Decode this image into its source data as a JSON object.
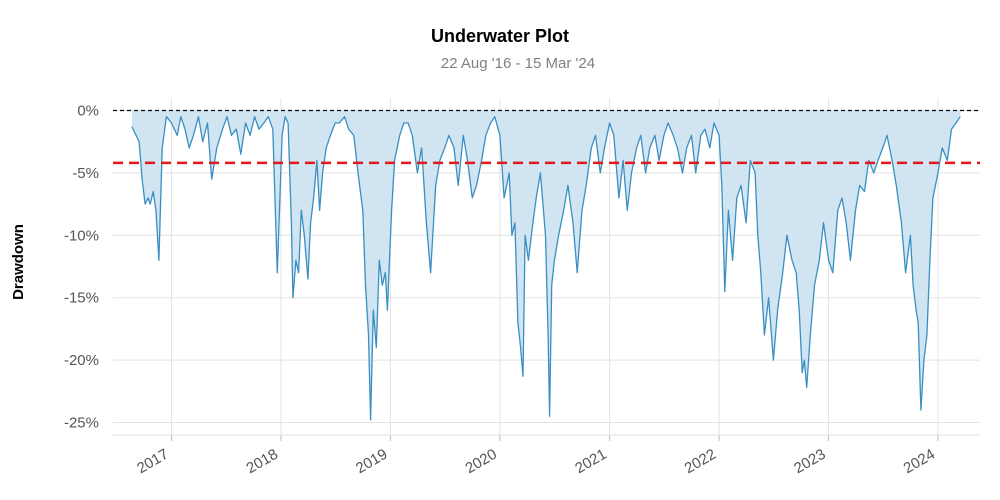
{
  "chart_data": {
    "type": "area",
    "title": "Underwater Plot",
    "subtitle": "22 Aug '16 - 15 Mar '24",
    "ylabel": "Drawdown",
    "xlabel": "",
    "xlim": [
      "2016-06-20",
      "2024-05-20"
    ],
    "ylim": [
      -26,
      1
    ],
    "y_ticks": [
      {
        "value": 0,
        "label": "0%"
      },
      {
        "value": -5,
        "label": "-5%"
      },
      {
        "value": -10,
        "label": "-10%"
      },
      {
        "value": -15,
        "label": "-15%"
      },
      {
        "value": -20,
        "label": "-20%"
      },
      {
        "value": -25,
        "label": "-25%"
      }
    ],
    "x_ticks": [
      {
        "value": "2017-01-01",
        "label": "2017"
      },
      {
        "value": "2018-01-01",
        "label": "2018"
      },
      {
        "value": "2019-01-01",
        "label": "2019"
      },
      {
        "value": "2020-01-01",
        "label": "2020"
      },
      {
        "value": "2021-01-01",
        "label": "2021"
      },
      {
        "value": "2022-01-01",
        "label": "2022"
      },
      {
        "value": "2023-01-01",
        "label": "2023"
      },
      {
        "value": "2024-01-01",
        "label": "2024"
      }
    ],
    "average_drawdown": -4.2,
    "grid": true,
    "colors": {
      "line": "#3a8fc2",
      "fill": "#cfe3f1",
      "average": "#e31a1c",
      "zero": "#000000"
    },
    "series": [
      {
        "x": [
          "2016-08-22",
          "2016-09-05",
          "2016-09-15",
          "2016-09-25",
          "2016-10-05",
          "2016-10-15",
          "2016-10-22",
          "2016-11-01",
          "2016-11-10",
          "2016-11-20",
          "2016-12-01",
          "2016-12-15",
          "2017-01-01",
          "2017-01-20",
          "2017-02-01",
          "2017-02-15",
          "2017-03-01",
          "2017-03-15",
          "2017-04-01",
          "2017-04-15",
          "2017-05-01",
          "2017-05-15",
          "2017-06-01",
          "2017-06-20",
          "2017-07-05",
          "2017-07-20",
          "2017-08-05",
          "2017-08-20",
          "2017-09-05",
          "2017-09-20",
          "2017-10-05",
          "2017-10-20",
          "2017-11-05",
          "2017-11-20",
          "2017-12-05",
          "2017-12-20",
          "2018-01-05",
          "2018-01-15",
          "2018-01-25",
          "2018-02-05",
          "2018-02-10",
          "2018-02-20",
          "2018-03-01",
          "2018-03-10",
          "2018-03-20",
          "2018-04-01",
          "2018-04-10",
          "2018-04-20",
          "2018-05-01",
          "2018-05-10",
          "2018-05-20",
          "2018-06-01",
          "2018-06-15",
          "2018-07-01",
          "2018-07-15",
          "2018-08-01",
          "2018-08-15",
          "2018-09-01",
          "2018-09-15",
          "2018-10-01",
          "2018-10-10",
          "2018-10-20",
          "2018-10-27",
          "2018-11-05",
          "2018-11-15",
          "2018-11-25",
          "2018-12-05",
          "2018-12-15",
          "2018-12-22",
          "2019-01-05",
          "2019-01-15",
          "2019-02-01",
          "2019-02-15",
          "2019-03-01",
          "2019-03-15",
          "2019-04-01",
          "2019-04-15",
          "2019-05-01",
          "2019-05-15",
          "2019-06-01",
          "2019-06-15",
          "2019-07-01",
          "2019-07-15",
          "2019-08-01",
          "2019-08-15",
          "2019-09-01",
          "2019-09-15",
          "2019-10-01",
          "2019-10-15",
          "2019-11-01",
          "2019-11-15",
          "2019-12-01",
          "2019-12-15",
          "2020-01-01",
          "2020-01-15",
          "2020-02-01",
          "2020-02-10",
          "2020-02-20",
          "2020-03-01",
          "2020-03-10",
          "2020-03-18",
          "2020-03-25",
          "2020-04-05",
          "2020-04-20",
          "2020-05-01",
          "2020-05-15",
          "2020-06-01",
          "2020-06-10",
          "2020-06-15",
          "2020-06-22",
          "2020-07-01",
          "2020-07-15",
          "2020-08-01",
          "2020-08-15",
          "2020-09-01",
          "2020-09-15",
          "2020-10-01",
          "2020-10-15",
          "2020-11-01",
          "2020-11-15",
          "2020-12-01",
          "2020-12-15",
          "2021-01-01",
          "2021-01-15",
          "2021-02-01",
          "2021-02-15",
          "2021-03-01",
          "2021-03-15",
          "2021-04-01",
          "2021-04-15",
          "2021-05-01",
          "2021-05-15",
          "2021-06-01",
          "2021-06-15",
          "2021-07-01",
          "2021-07-15",
          "2021-08-01",
          "2021-08-15",
          "2021-09-01",
          "2021-09-15",
          "2021-10-01",
          "2021-10-15",
          "2021-11-01",
          "2021-11-15",
          "2021-12-01",
          "2021-12-15",
          "2022-01-01",
          "2022-01-10",
          "2022-01-20",
          "2022-02-01",
          "2022-02-15",
          "2022-03-01",
          "2022-03-15",
          "2022-04-01",
          "2022-04-15",
          "2022-05-01",
          "2022-05-10",
          "2022-05-20",
          "2022-06-01",
          "2022-06-15",
          "2022-07-01",
          "2022-07-15",
          "2022-08-01",
          "2022-08-15",
          "2022-09-01",
          "2022-09-15",
          "2022-09-25",
          "2022-10-05",
          "2022-10-12",
          "2022-10-20",
          "2022-11-01",
          "2022-11-15",
          "2022-12-01",
          "2022-12-15",
          "2023-01-01",
          "2023-01-15",
          "2023-02-01",
          "2023-02-15",
          "2023-03-01",
          "2023-03-15",
          "2023-04-01",
          "2023-04-15",
          "2023-05-01",
          "2023-05-15",
          "2023-06-01",
          "2023-06-15",
          "2023-07-01",
          "2023-07-15",
          "2023-08-01",
          "2023-08-15",
          "2023-09-01",
          "2023-09-15",
          "2023-10-01",
          "2023-10-10",
          "2023-10-20",
          "2023-10-27",
          "2023-11-05",
          "2023-11-15",
          "2023-11-25",
          "2023-12-05",
          "2023-12-15",
          "2024-01-01",
          "2024-01-15",
          "2024-02-01",
          "2024-02-15",
          "2024-03-01",
          "2024-03-15"
        ],
        "y": [
          -1.3,
          -2.0,
          -2.5,
          -5.5,
          -7.5,
          -7.0,
          -7.5,
          -6.5,
          -8.0,
          -12.0,
          -3.0,
          -0.5,
          -1.0,
          -2.0,
          -0.5,
          -1.5,
          -3.0,
          -2.0,
          -0.5,
          -2.5,
          -1.0,
          -5.5,
          -3.0,
          -1.5,
          -0.5,
          -2.0,
          -1.5,
          -3.5,
          -1.0,
          -2.0,
          -0.5,
          -1.5,
          -1.0,
          -0.5,
          -1.5,
          -13.0,
          -2.0,
          -0.5,
          -1.0,
          -9.0,
          -15.0,
          -12.0,
          -13.0,
          -8.0,
          -10.0,
          -13.5,
          -9.0,
          -7.0,
          -4.0,
          -8.0,
          -5.0,
          -3.0,
          -2.0,
          -1.0,
          -1.0,
          -0.5,
          -1.5,
          -2.0,
          -5.0,
          -8.0,
          -14.0,
          -18.0,
          -24.8,
          -16.0,
          -19.0,
          -12.0,
          -14.0,
          -13.0,
          -16.0,
          -8.0,
          -4.0,
          -2.0,
          -1.0,
          -1.0,
          -2.0,
          -5.0,
          -3.0,
          -9.0,
          -13.0,
          -6.0,
          -4.0,
          -3.0,
          -2.0,
          -3.0,
          -6.0,
          -2.0,
          -4.0,
          -7.0,
          -6.0,
          -4.0,
          -2.0,
          -1.0,
          -0.5,
          -2.0,
          -7.0,
          -5.0,
          -10.0,
          -9.0,
          -17.0,
          -19.0,
          -21.3,
          -10.0,
          -12.0,
          -9.0,
          -7.0,
          -5.0,
          -10.0,
          -18.0,
          -24.5,
          -14.0,
          -12.0,
          -10.0,
          -8.0,
          -6.0,
          -9.0,
          -13.0,
          -8.0,
          -6.0,
          -3.0,
          -2.0,
          -5.0,
          -3.0,
          -1.0,
          -2.0,
          -7.0,
          -4.0,
          -8.0,
          -5.0,
          -3.0,
          -2.0,
          -5.0,
          -3.0,
          -2.0,
          -4.0,
          -2.0,
          -1.0,
          -2.0,
          -3.0,
          -5.0,
          -3.0,
          -2.0,
          -5.0,
          -2.0,
          -1.5,
          -3.0,
          -1.0,
          -2.0,
          -6.0,
          -14.5,
          -8.0,
          -12.0,
          -7.0,
          -6.0,
          -9.0,
          -4.0,
          -5.0,
          -10.0,
          -13.0,
          -18.0,
          -15.0,
          -20.0,
          -16.0,
          -13.0,
          -10.0,
          -12.0,
          -13.0,
          -16.0,
          -21.0,
          -20.0,
          -22.2,
          -18.0,
          -14.0,
          -12.0,
          -9.0,
          -12.0,
          -13.0,
          -8.0,
          -7.0,
          -9.0,
          -12.0,
          -8.0,
          -6.0,
          -6.5,
          -4.0,
          -5.0,
          -4.0,
          -3.0,
          -2.0,
          -4.0,
          -6.0,
          -9.0,
          -13.0,
          -10.0,
          -14.0,
          -16.0,
          -17.0,
          -24.0,
          -20.0,
          -18.0,
          -12.0,
          -7.0,
          -5.0,
          -3.0,
          -4.0,
          -1.5,
          -1.0,
          -0.5
        ]
      }
    ]
  }
}
